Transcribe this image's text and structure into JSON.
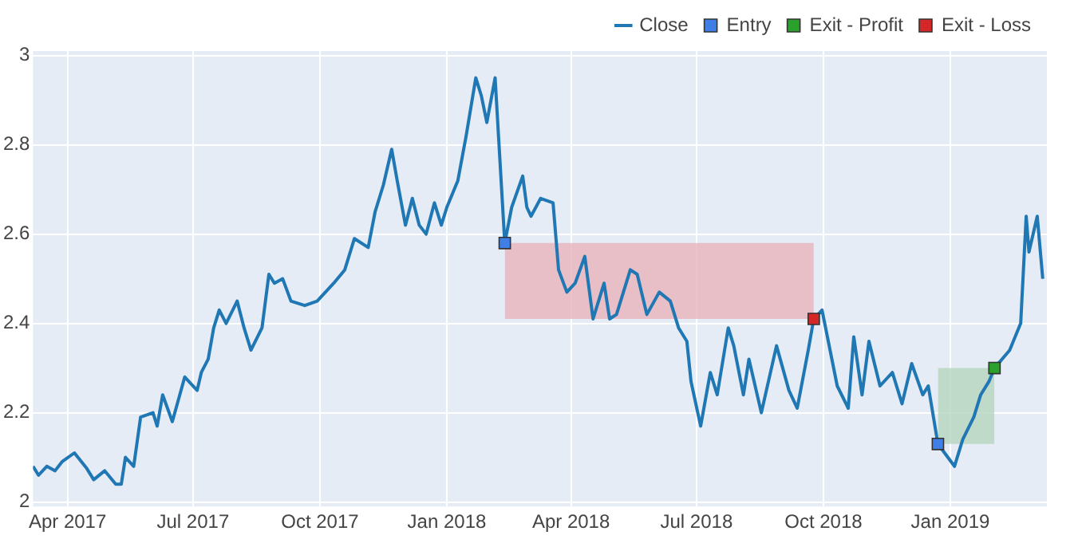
{
  "chart_data": {
    "type": "line",
    "xlim": [
      "2017-03-07",
      "2019-03-12"
    ],
    "xticks": [
      {
        "value": "2017-04-01",
        "label": "Apr 2017"
      },
      {
        "value": "2017-07-01",
        "label": "Jul 2017"
      },
      {
        "value": "2017-10-01",
        "label": "Oct 2017"
      },
      {
        "value": "2018-01-01",
        "label": "Jan 2018"
      },
      {
        "value": "2018-04-01",
        "label": "Apr 2018"
      },
      {
        "value": "2018-07-01",
        "label": "Jul 2018"
      },
      {
        "value": "2018-10-01",
        "label": "Oct 2018"
      },
      {
        "value": "2019-01-01",
        "label": "Jan 2019"
      }
    ],
    "ylim": [
      1.99,
      3.01
    ],
    "yticks": [
      2,
      2.2,
      2.4,
      2.6,
      2.8,
      3
    ],
    "grid": true,
    "legend": "top right",
    "series": [
      {
        "color": "#e8b4bc",
        "x": [
          "2018-02-12",
          "2018-09-24"
        ],
        "lower": [
          2.41,
          2.41
        ],
        "upper": [
          2.58,
          2.58
        ],
        "values": [
          null,
          null
        ]
      },
      {
        "color": "#b5d6be",
        "x": [
          "2018-12-23",
          "2019-02-02"
        ],
        "lower": [
          2.13,
          2.13
        ],
        "upper": [
          2.3,
          2.3
        ],
        "values": [
          null,
          null
        ]
      },
      {
        "name": "Close",
        "color": "#1f77b4",
        "marker": "none",
        "x": [
          "2017-03-07",
          "2017-03-11",
          "2017-03-17",
          "2017-03-23",
          "2017-03-28",
          "2017-04-06",
          "2017-04-15",
          "2017-04-20",
          "2017-04-28",
          "2017-05-06",
          "2017-05-10",
          "2017-05-13",
          "2017-05-19",
          "2017-05-24",
          "2017-06-02",
          "2017-06-05",
          "2017-06-09",
          "2017-06-16",
          "2017-06-25",
          "2017-07-04",
          "2017-07-07",
          "2017-07-12",
          "2017-07-16",
          "2017-07-20",
          "2017-07-25",
          "2017-08-02",
          "2017-08-07",
          "2017-08-12",
          "2017-08-20",
          "2017-08-25",
          "2017-08-29",
          "2017-09-04",
          "2017-09-10",
          "2017-09-20",
          "2017-09-29",
          "2017-10-11",
          "2017-10-19",
          "2017-10-26",
          "2017-11-05",
          "2017-11-10",
          "2017-11-16",
          "2017-11-22",
          "2017-11-26",
          "2017-12-02",
          "2017-12-07",
          "2017-12-12",
          "2017-12-17",
          "2017-12-23",
          "2017-12-28",
          "2018-01-01",
          "2018-01-09",
          "2018-01-15",
          "2018-01-22",
          "2018-01-26",
          "2018-01-30",
          "2018-02-05",
          "2018-02-12",
          "2018-02-17",
          "2018-02-25",
          "2018-02-28",
          "2018-03-03",
          "2018-03-10",
          "2018-03-19",
          "2018-03-23",
          "2018-03-29",
          "2018-04-04",
          "2018-04-11",
          "2018-04-17",
          "2018-04-25",
          "2018-04-29",
          "2018-05-04",
          "2018-05-14",
          "2018-05-19",
          "2018-05-26",
          "2018-06-04",
          "2018-06-12",
          "2018-06-18",
          "2018-06-24",
          "2018-06-27",
          "2018-07-04",
          "2018-07-11",
          "2018-07-16",
          "2018-07-24",
          "2018-07-28",
          "2018-08-04",
          "2018-08-08",
          "2018-08-17",
          "2018-08-28",
          "2018-09-06",
          "2018-09-12",
          "2018-09-20",
          "2018-09-24",
          "2018-09-30",
          "2018-10-11",
          "2018-10-19",
          "2018-10-23",
          "2018-10-29",
          "2018-11-03",
          "2018-11-11",
          "2018-11-20",
          "2018-11-27",
          "2018-12-04",
          "2018-12-12",
          "2018-12-16",
          "2018-12-23",
          "2019-01-04",
          "2019-01-10",
          "2019-01-18",
          "2019-01-23",
          "2019-01-29",
          "2019-02-02",
          "2019-02-13",
          "2019-02-21",
          "2019-02-25",
          "2019-02-27",
          "2019-03-05",
          "2019-03-09"
        ],
        "values": [
          2.08,
          2.06,
          2.08,
          2.07,
          2.09,
          2.11,
          2.075,
          2.05,
          2.07,
          2.04,
          2.04,
          2.1,
          2.08,
          2.19,
          2.2,
          2.17,
          2.24,
          2.18,
          2.28,
          2.25,
          2.29,
          2.32,
          2.39,
          2.43,
          2.4,
          2.45,
          2.39,
          2.34,
          2.39,
          2.51,
          2.49,
          2.5,
          2.45,
          2.44,
          2.45,
          2.49,
          2.52,
          2.59,
          2.57,
          2.65,
          2.71,
          2.79,
          2.72,
          2.62,
          2.68,
          2.62,
          2.6,
          2.67,
          2.62,
          2.66,
          2.72,
          2.82,
          2.95,
          2.91,
          2.85,
          2.95,
          2.58,
          2.66,
          2.73,
          2.66,
          2.64,
          2.68,
          2.67,
          2.52,
          2.47,
          2.49,
          2.55,
          2.41,
          2.49,
          2.41,
          2.42,
          2.52,
          2.51,
          2.42,
          2.47,
          2.45,
          2.39,
          2.36,
          2.27,
          2.17,
          2.29,
          2.24,
          2.39,
          2.35,
          2.24,
          2.32,
          2.2,
          2.35,
          2.25,
          2.21,
          2.34,
          2.41,
          2.43,
          2.26,
          2.21,
          2.37,
          2.24,
          2.36,
          2.26,
          2.29,
          2.22,
          2.31,
          2.24,
          2.26,
          2.13,
          2.08,
          2.14,
          2.19,
          2.24,
          2.27,
          2.3,
          2.34,
          2.4,
          2.64,
          2.56,
          2.64,
          2.5
        ]
      },
      {
        "type": "scatter",
        "name": "Entry",
        "color": "#3f7fe6",
        "marker": "square",
        "x": [
          "2018-02-12",
          "2018-12-23"
        ],
        "values": [
          2.58,
          2.13
        ]
      },
      {
        "type": "scatter",
        "name": "Exit - Profit",
        "color": "#2ca02c",
        "marker": "square",
        "x": [
          "2019-02-02"
        ],
        "values": [
          2.3
        ]
      },
      {
        "type": "scatter",
        "name": "Exit - Loss",
        "color": "#d62728",
        "marker": "square",
        "x": [
          "2018-09-24"
        ],
        "values": [
          2.41
        ]
      }
    ]
  }
}
